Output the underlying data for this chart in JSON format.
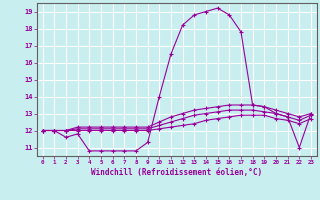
{
  "title": "",
  "xlabel": "Windchill (Refroidissement éolien,°C)",
  "background_color": "#c8eef0",
  "grid_color": "#ffffff",
  "line_color": "#990099",
  "xlim": [
    -0.5,
    23.5
  ],
  "ylim": [
    10.5,
    19.5
  ],
  "yticks": [
    11,
    12,
    13,
    14,
    15,
    16,
    17,
    18,
    19
  ],
  "xticks": [
    0,
    1,
    2,
    3,
    4,
    5,
    6,
    7,
    8,
    9,
    10,
    11,
    12,
    13,
    14,
    15,
    16,
    17,
    18,
    19,
    20,
    21,
    22,
    23
  ],
  "hours": [
    0,
    1,
    2,
    3,
    4,
    5,
    6,
    7,
    8,
    9,
    10,
    11,
    12,
    13,
    14,
    15,
    16,
    17,
    18,
    19,
    20,
    21,
    22,
    23
  ],
  "line1": [
    12.0,
    12.0,
    11.6,
    11.8,
    10.8,
    10.8,
    10.8,
    10.8,
    10.8,
    11.3,
    14.0,
    16.5,
    18.2,
    18.8,
    19.0,
    19.2,
    18.8,
    17.8,
    13.5,
    13.4,
    13.0,
    12.8,
    11.0,
    13.0
  ],
  "line2": [
    12.0,
    12.0,
    12.0,
    12.2,
    12.2,
    12.2,
    12.2,
    12.2,
    12.2,
    12.2,
    12.5,
    12.8,
    13.0,
    13.2,
    13.3,
    13.4,
    13.5,
    13.5,
    13.5,
    13.4,
    13.2,
    13.0,
    12.8,
    13.0
  ],
  "line3": [
    12.0,
    12.0,
    12.0,
    12.1,
    12.1,
    12.1,
    12.1,
    12.1,
    12.1,
    12.1,
    12.3,
    12.5,
    12.7,
    12.9,
    13.0,
    13.1,
    13.2,
    13.2,
    13.2,
    13.1,
    13.0,
    12.8,
    12.6,
    12.9
  ],
  "line4": [
    12.0,
    12.0,
    12.0,
    12.0,
    12.0,
    12.0,
    12.0,
    12.0,
    12.0,
    12.0,
    12.1,
    12.2,
    12.3,
    12.4,
    12.6,
    12.7,
    12.8,
    12.9,
    12.9,
    12.9,
    12.7,
    12.6,
    12.4,
    12.7
  ]
}
